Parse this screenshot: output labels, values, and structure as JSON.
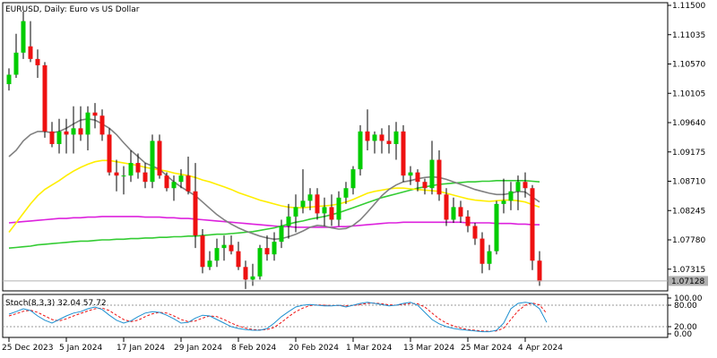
{
  "chart_data": {
    "type": "candlestick",
    "title": "EURUSD, Daily:  Euro vs US Dollar",
    "symbol": "EURUSD",
    "timeframe": "Daily",
    "description": "Euro vs US Dollar",
    "price_axis": {
      "ticks": [
        "1.11500",
        "1.11035",
        "1.10570",
        "1.10105",
        "1.09640",
        "1.09175",
        "1.08710",
        "1.08245",
        "1.07780",
        "1.07315"
      ],
      "ylim": [
        1.07,
        1.115
      ]
    },
    "current_price": "1.07128",
    "date_axis": [
      "25 Dec 2023",
      "5 Jan 2024",
      "17 Jan 2024",
      "29 Jan 2024",
      "8 Feb 2024",
      "20 Feb 2024",
      "1 Mar 2024",
      "13 Mar 2024",
      "25 Mar 2024",
      "4 Apr 2024"
    ],
    "date_tick_index": [
      0,
      8,
      16,
      24,
      32,
      40,
      48,
      56,
      64,
      72
    ],
    "colors": {
      "up": "#00cc00",
      "down": "#ee1111",
      "wick": "#000000",
      "ma_fast": "#808080",
      "ma_mid": "#ffee00",
      "ma_slow_a": "#33cc33",
      "ma_slow_b": "#dd22dd",
      "stoch_main": "#1e90d0",
      "stoch_signal": "#ee1111"
    },
    "candles": [
      [
        1.1025,
        1.105,
        1.1015,
        1.104
      ],
      [
        1.104,
        1.1105,
        1.1035,
        1.1075
      ],
      [
        1.1075,
        1.114,
        1.1065,
        1.1125
      ],
      [
        1.1085,
        1.1125,
        1.106,
        1.1065
      ],
      [
        1.1065,
        1.108,
        1.1035,
        1.1055
      ],
      [
        1.1055,
        1.106,
        1.094,
        1.095
      ],
      [
        1.095,
        1.0965,
        1.0925,
        1.093
      ],
      [
        1.093,
        1.097,
        1.0915,
        1.095
      ],
      [
        1.095,
        1.097,
        1.0915,
        1.0945
      ],
      [
        1.0945,
        1.099,
        1.0915,
        1.0955
      ],
      [
        1.0955,
        1.099,
        1.0935,
        1.0945
      ],
      [
        1.0945,
        1.099,
        1.092,
        1.098
      ],
      [
        1.098,
        1.0995,
        1.0955,
        1.0975
      ],
      [
        1.0975,
        1.0985,
        1.0935,
        1.0945
      ],
      [
        1.0945,
        1.0955,
        1.088,
        1.0885
      ],
      [
        1.0885,
        1.0905,
        1.0855,
        1.088
      ],
      [
        1.088,
        1.0895,
        1.085,
        1.088
      ],
      [
        1.088,
        1.092,
        1.087,
        1.09
      ],
      [
        1.09,
        1.0915,
        1.0875,
        1.0885
      ],
      [
        1.0885,
        1.09,
        1.086,
        1.087
      ],
      [
        1.087,
        1.0945,
        1.086,
        1.0935
      ],
      [
        1.0935,
        1.0945,
        1.0875,
        1.088
      ],
      [
        1.088,
        1.0885,
        1.0855,
        1.086
      ],
      [
        1.086,
        1.088,
        1.084,
        1.087
      ],
      [
        1.087,
        1.089,
        1.086,
        1.088
      ],
      [
        1.088,
        1.091,
        1.085,
        1.0855
      ],
      [
        1.0855,
        1.09,
        1.0765,
        1.0785
      ],
      [
        1.0785,
        1.0795,
        1.0725,
        1.0735
      ],
      [
        1.0735,
        1.076,
        1.073,
        1.0745
      ],
      [
        1.0745,
        1.078,
        1.0735,
        1.0765
      ],
      [
        1.0765,
        1.0785,
        1.0745,
        1.077
      ],
      [
        1.077,
        1.0785,
        1.0755,
        1.076
      ],
      [
        1.076,
        1.0775,
        1.073,
        1.0735
      ],
      [
        1.0735,
        1.0745,
        1.07,
        1.0715
      ],
      [
        1.0715,
        1.074,
        1.0705,
        1.072
      ],
      [
        1.072,
        1.077,
        1.0715,
        1.0765
      ],
      [
        1.0765,
        1.0785,
        1.0745,
        1.0755
      ],
      [
        1.0755,
        1.079,
        1.0745,
        1.0775
      ],
      [
        1.0775,
        1.081,
        1.0765,
        1.08
      ],
      [
        1.08,
        1.0835,
        1.078,
        1.0815
      ],
      [
        1.0815,
        1.085,
        1.079,
        1.083
      ],
      [
        1.083,
        1.089,
        1.082,
        1.084
      ],
      [
        1.084,
        1.086,
        1.0825,
        1.085
      ],
      [
        1.085,
        1.086,
        1.081,
        1.082
      ],
      [
        1.082,
        1.0845,
        1.08,
        1.083
      ],
      [
        1.083,
        1.085,
        1.08,
        1.081
      ],
      [
        1.081,
        1.0855,
        1.08,
        1.0845
      ],
      [
        1.0845,
        1.087,
        1.0835,
        1.086
      ],
      [
        1.086,
        1.0895,
        1.085,
        1.089
      ],
      [
        1.089,
        1.096,
        1.088,
        1.095
      ],
      [
        1.095,
        1.0985,
        1.092,
        1.0935
      ],
      [
        1.0935,
        1.095,
        1.0915,
        1.0945
      ],
      [
        1.0945,
        1.0955,
        1.0915,
        1.0935
      ],
      [
        1.0935,
        1.096,
        1.0915,
        1.093
      ],
      [
        1.093,
        1.0965,
        1.0905,
        1.095
      ],
      [
        1.095,
        1.096,
        1.087,
        1.088
      ],
      [
        1.088,
        1.0895,
        1.0865,
        1.0885
      ],
      [
        1.0885,
        1.089,
        1.0855,
        1.087
      ],
      [
        1.087,
        1.0875,
        1.085,
        1.086
      ],
      [
        1.086,
        1.0935,
        1.085,
        1.0905
      ],
      [
        1.0905,
        1.092,
        1.084,
        1.085
      ],
      [
        1.085,
        1.086,
        1.08,
        1.081
      ],
      [
        1.081,
        1.0845,
        1.0805,
        1.083
      ],
      [
        1.083,
        1.084,
        1.0805,
        1.0815
      ],
      [
        1.0815,
        1.0825,
        1.079,
        1.08
      ],
      [
        1.08,
        1.0805,
        1.077,
        1.078
      ],
      [
        1.078,
        1.079,
        1.0725,
        1.074
      ],
      [
        1.074,
        1.077,
        1.073,
        1.076
      ],
      [
        1.076,
        1.084,
        1.0755,
        1.0835
      ],
      [
        1.0835,
        1.0875,
        1.082,
        1.084
      ],
      [
        1.084,
        1.087,
        1.0825,
        1.0855
      ],
      [
        1.0855,
        1.088,
        1.0825,
        1.087
      ],
      [
        1.087,
        1.0885,
        1.0845,
        1.086
      ],
      [
        1.086,
        1.0865,
        1.073,
        1.0745
      ],
      [
        1.0745,
        1.076,
        1.0705,
        1.0712
      ]
    ],
    "ma_fast": [
      1.091,
      1.092,
      1.0935,
      1.0945,
      1.095,
      1.095,
      1.0948,
      1.095,
      1.0955,
      1.0962,
      1.0968,
      1.097,
      1.0968,
      1.0962,
      1.0955,
      1.0945,
      1.0932,
      1.092,
      1.091,
      1.09,
      1.0895,
      1.089,
      1.088,
      1.087,
      1.0862,
      1.0855,
      1.0848,
      1.0838,
      1.0828,
      1.0818,
      1.081,
      1.0803,
      1.0797,
      1.0792,
      1.0788,
      1.0784,
      1.0781,
      1.0779,
      1.078,
      1.0783,
      1.0787,
      1.0792,
      1.0798,
      1.0801,
      1.08,
      1.0797,
      1.0795,
      1.0796,
      1.0801,
      1.081,
      1.0822,
      1.0835,
      1.0848,
      1.0858,
      1.0865,
      1.087,
      1.0872,
      1.0875,
      1.0877,
      1.0878,
      1.0877,
      1.0874,
      1.087,
      1.0866,
      1.0862,
      1.0858,
      1.0855,
      1.0852,
      1.085,
      1.085,
      1.0852,
      1.0855,
      1.0854,
      1.0846,
      1.0838
    ],
    "ma_mid": [
      1.079,
      1.0805,
      1.082,
      1.0835,
      1.0848,
      1.0858,
      1.0865,
      1.0872,
      1.088,
      1.0887,
      1.0893,
      1.0898,
      1.0902,
      1.0904,
      1.0904,
      1.0902,
      1.09,
      1.0898,
      1.0896,
      1.0893,
      1.0891,
      1.0889,
      1.0887,
      1.0884,
      1.0882,
      1.088,
      1.0877,
      1.0873,
      1.087,
      1.0866,
      1.0862,
      1.0858,
      1.0853,
      1.0849,
      1.0845,
      1.0841,
      1.0838,
      1.0835,
      1.0832,
      1.083,
      1.0829,
      1.0829,
      1.083,
      1.0831,
      1.0832,
      1.0833,
      1.0835,
      1.0838,
      1.0842,
      1.0847,
      1.0852,
      1.0855,
      1.0857,
      1.0859,
      1.086,
      1.086,
      1.0859,
      1.0858,
      1.0857,
      1.0856,
      1.0855,
      1.0852,
      1.0849,
      1.0846,
      1.0843,
      1.0841,
      1.084,
      1.0839,
      1.084,
      1.0841,
      1.0841,
      1.084,
      1.0838,
      1.0834,
      1.083
    ],
    "ma_slow_a": [
      1.0765,
      1.0766,
      1.0767,
      1.0768,
      1.077,
      1.0771,
      1.0772,
      1.0773,
      1.0774,
      1.0775,
      1.0776,
      1.0776,
      1.0777,
      1.0778,
      1.0778,
      1.0779,
      1.0779,
      1.078,
      1.078,
      1.0781,
      1.0781,
      1.0782,
      1.0782,
      1.0783,
      1.0783,
      1.0784,
      1.0784,
      1.0785,
      1.0786,
      1.0787,
      1.0787,
      1.0788,
      1.0789,
      1.079,
      1.0791,
      1.0793,
      1.0795,
      1.0797,
      1.08,
      1.0803,
      1.0806,
      1.0808,
      1.0811,
      1.0813,
      1.0815,
      1.0818,
      1.0821,
      1.0825,
      1.0829,
      1.0833,
      1.0837,
      1.0841,
      1.0845,
      1.0848,
      1.0851,
      1.0854,
      1.0857,
      1.086,
      1.0862,
      1.0864,
      1.0866,
      1.0867,
      1.0868,
      1.0869,
      1.087,
      1.087,
      1.0871,
      1.0871,
      1.0872,
      1.0872,
      1.0872,
      1.0872,
      1.0872,
      1.0871,
      1.087
    ],
    "ma_slow_b": [
      1.0805,
      1.0806,
      1.0807,
      1.0808,
      1.0809,
      1.081,
      1.0811,
      1.0812,
      1.0812,
      1.0813,
      1.0813,
      1.0814,
      1.0814,
      1.0815,
      1.0815,
      1.0815,
      1.0815,
      1.0815,
      1.0815,
      1.0814,
      1.0814,
      1.0814,
      1.0813,
      1.0813,
      1.0812,
      1.0812,
      1.0811,
      1.081,
      1.0809,
      1.0808,
      1.0807,
      1.0806,
      1.0805,
      1.0804,
      1.0803,
      1.0802,
      1.0801,
      1.08,
      1.0799,
      1.0799,
      1.0798,
      1.0798,
      1.0798,
      1.0798,
      1.0798,
      1.0798,
      1.0799,
      1.0799,
      1.08,
      1.0801,
      1.0802,
      1.0803,
      1.0804,
      1.0805,
      1.0805,
      1.0806,
      1.0806,
      1.0806,
      1.0806,
      1.0806,
      1.0806,
      1.0806,
      1.0806,
      1.0806,
      1.0805,
      1.0805,
      1.0805,
      1.0805,
      1.0804,
      1.0804,
      1.0804,
      1.0803,
      1.0803,
      1.0802,
      1.0802
    ],
    "stochastic": {
      "label": "Stoch(8,3,3) 32.04 57.72",
      "ticks": [
        "100.00",
        "80.00",
        "20.00",
        "0.00"
      ],
      "ylim": [
        0,
        100
      ],
      "main": [
        55,
        62,
        70,
        65,
        50,
        38,
        30,
        40,
        50,
        58,
        62,
        70,
        75,
        68,
        52,
        38,
        30,
        36,
        48,
        58,
        62,
        60,
        52,
        42,
        30,
        32,
        44,
        52,
        50,
        40,
        30,
        20,
        15,
        12,
        10,
        10,
        15,
        30,
        48,
        62,
        75,
        80,
        82,
        80,
        78,
        78,
        80,
        75,
        80,
        85,
        88,
        85,
        82,
        78,
        80,
        85,
        88,
        80,
        60,
        40,
        28,
        20,
        15,
        12,
        10,
        8,
        6,
        6,
        10,
        30,
        70,
        85,
        88,
        85,
        70,
        32
      ],
      "signal": [
        50,
        56,
        63,
        66,
        60,
        50,
        40,
        36,
        42,
        50,
        57,
        64,
        70,
        72,
        65,
        52,
        40,
        34,
        38,
        48,
        56,
        60,
        58,
        50,
        40,
        34,
        36,
        44,
        50,
        48,
        40,
        30,
        22,
        16,
        12,
        11,
        12,
        18,
        32,
        48,
        62,
        72,
        79,
        81,
        80,
        79,
        79,
        78,
        79,
        82,
        85,
        86,
        84,
        81,
        80,
        82,
        85,
        84,
        75,
        58,
        42,
        30,
        22,
        16,
        12,
        10,
        8,
        7,
        8,
        16,
        40,
        64,
        80,
        86,
        81,
        57
      ]
    }
  }
}
